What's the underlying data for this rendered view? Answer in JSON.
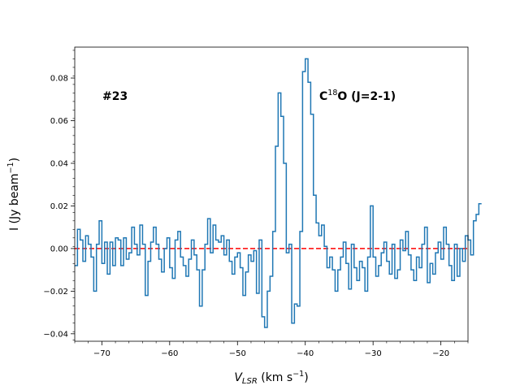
{
  "chart_data": {
    "type": "line",
    "style": "step",
    "xlabel": "V_LSR (km s⁻¹)",
    "xlabel_main": "V",
    "xlabel_sub": "LSR",
    "xlabel_unit": " (km s",
    "xlabel_exp": "−1",
    "xlabel_close": ")",
    "ylabel": "I (Jy beam⁻¹)",
    "ylabel_main": "I (Jy beam",
    "ylabel_exp": "−1",
    "ylabel_close": ")",
    "xlim": [
      -74.0,
      -16.0
    ],
    "ylim": [
      -0.0435,
      0.0945
    ],
    "xticks": [
      -70,
      -60,
      -50,
      -40,
      -30,
      -20
    ],
    "xtick_labels": [
      "−70",
      "−60",
      "−50",
      "−40",
      "−30",
      "−20"
    ],
    "yticks": [
      -0.04,
      -0.02,
      0.0,
      0.02,
      0.04,
      0.06,
      0.08
    ],
    "ytick_labels": [
      "−0.04",
      "−0.02",
      "0.00",
      "0.02",
      "0.04",
      "0.06",
      "0.08"
    ],
    "annotations": {
      "source_label": "#23",
      "line_species": "C",
      "line_isotope": "18",
      "line_transition": "O (J=2-1)"
    },
    "baseline": {
      "y": 0.0,
      "color": "#ff0000",
      "style": "dashed"
    },
    "series": [
      {
        "name": "spectrum",
        "color": "#1f77b4",
        "x_start": -74.0,
        "x_step": 0.4,
        "values": [
          -0.008,
          0.009,
          0.004,
          -0.006,
          0.006,
          0.002,
          -0.004,
          -0.02,
          0.002,
          0.013,
          -0.007,
          0.003,
          -0.012,
          0.003,
          -0.008,
          0.005,
          0.004,
          -0.008,
          0.005,
          -0.005,
          -0.002,
          0.01,
          0.002,
          -0.003,
          0.011,
          0.002,
          -0.022,
          -0.006,
          0.003,
          0.01,
          0.002,
          -0.005,
          -0.011,
          0.0,
          0.005,
          -0.009,
          -0.014,
          0.004,
          0.008,
          -0.004,
          -0.008,
          -0.013,
          -0.005,
          0.004,
          -0.003,
          -0.01,
          -0.027,
          -0.01,
          0.002,
          0.014,
          -0.002,
          0.011,
          0.004,
          0.003,
          0.006,
          -0.003,
          0.004,
          -0.006,
          -0.012,
          -0.004,
          -0.002,
          -0.009,
          -0.022,
          -0.011,
          -0.003,
          -0.006,
          -0.001,
          -0.021,
          0.004,
          -0.032,
          -0.037,
          -0.02,
          -0.013,
          0.008,
          0.048,
          0.073,
          0.062,
          0.04,
          -0.002,
          0.002,
          -0.035,
          -0.026,
          -0.027,
          0.008,
          0.083,
          0.089,
          0.078,
          0.063,
          0.025,
          0.012,
          0.006,
          0.011,
          0.001,
          -0.009,
          -0.004,
          -0.01,
          -0.02,
          -0.01,
          -0.004,
          0.003,
          -0.007,
          -0.019,
          0.002,
          -0.009,
          -0.015,
          -0.006,
          -0.009,
          -0.02,
          -0.004,
          0.02,
          -0.004,
          -0.013,
          -0.008,
          -0.002,
          0.003,
          -0.006,
          -0.012,
          0.002,
          -0.014,
          -0.01,
          0.004,
          -0.001,
          0.008,
          -0.003,
          -0.01,
          -0.015,
          -0.004,
          -0.009,
          0.002,
          0.01,
          -0.016,
          -0.007,
          -0.012,
          -0.002,
          0.003,
          -0.005,
          0.01,
          0.002,
          -0.008,
          -0.015,
          0.002,
          -0.013,
          0.0,
          -0.006,
          0.006,
          0.004,
          -0.003,
          0.013,
          0.016,
          0.021
        ]
      }
    ]
  }
}
